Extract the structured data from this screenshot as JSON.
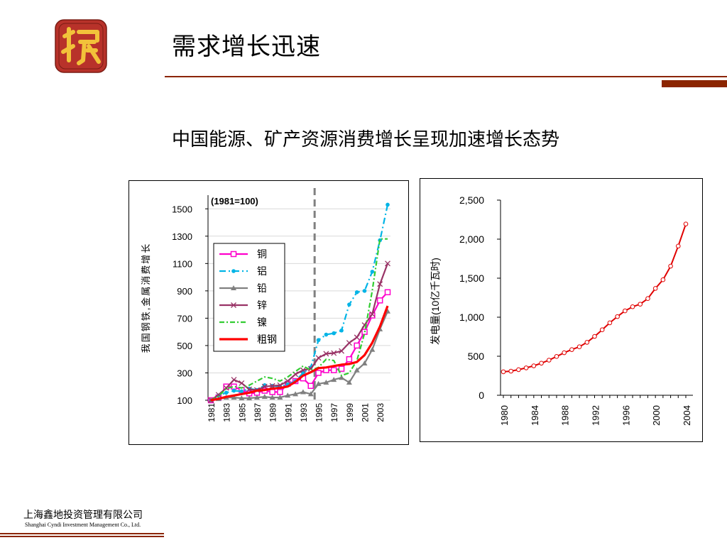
{
  "slide": {
    "title": "需求增长迅速",
    "subtitle": "中国能源、矿产资源消费增长呈现加速增长态势",
    "company_cn": "上海鑫地投资管理有限公司",
    "company_en": "Shanghai Cyndi Investment Management Co., Ltd.",
    "colors": {
      "accent": "#8B2500",
      "logo_bg": "#B8322A",
      "logo_mark": "#F2C23A"
    },
    "logo_icon": "seal-logo-icon"
  },
  "chart_data": [
    {
      "type": "line",
      "annotation": "(1981=100)",
      "ylabel": "我国钢铁,金属消费增长",
      "ylim": [
        100,
        1600
      ],
      "yticks": [
        100,
        300,
        500,
        700,
        900,
        1100,
        1300,
        1500
      ],
      "x": [
        1981,
        1982,
        1983,
        1984,
        1985,
        1986,
        1987,
        1988,
        1989,
        1990,
        1991,
        1992,
        1993,
        1994,
        1995,
        1996,
        1997,
        1998,
        1999,
        2000,
        2001,
        2002,
        2003,
        2004
      ],
      "xtick_labels": [
        "1981",
        "1983",
        "1985",
        "1987",
        "1989",
        "1991",
        "1993",
        "1995",
        "1997",
        "1999",
        "2001",
        "2003"
      ],
      "reference_line_x": 1994.5,
      "legend_position": "middle-left",
      "grid": true,
      "series": [
        {
          "name": "铜",
          "color": "#FF00CC",
          "marker": "square",
          "values": [
            100,
            120,
            200,
            200,
            175,
            150,
            155,
            170,
            160,
            160,
            220,
            240,
            260,
            205,
            300,
            320,
            320,
            330,
            400,
            500,
            600,
            720,
            830,
            890
          ]
        },
        {
          "name": "铝",
          "color": "#00B4E6",
          "marker": "circle",
          "values": [
            100,
            135,
            155,
            170,
            165,
            185,
            175,
            210,
            205,
            200,
            215,
            240,
            300,
            340,
            540,
            580,
            590,
            610,
            800,
            890,
            900,
            1040,
            1270,
            1530
          ]
        },
        {
          "name": "铅",
          "color": "#808080",
          "marker": "triangle",
          "values": [
            100,
            110,
            120,
            120,
            115,
            115,
            120,
            125,
            120,
            120,
            135,
            145,
            160,
            145,
            220,
            230,
            250,
            265,
            230,
            320,
            370,
            470,
            620,
            750
          ]
        },
        {
          "name": "锌",
          "color": "#993366",
          "marker": "x",
          "values": [
            100,
            140,
            190,
            250,
            225,
            180,
            175,
            200,
            205,
            210,
            240,
            290,
            320,
            330,
            410,
            440,
            445,
            460,
            520,
            560,
            650,
            730,
            950,
            1100
          ]
        },
        {
          "name": "镍",
          "color": "#33CC33",
          "marker": "none",
          "values": [
            100,
            130,
            185,
            200,
            190,
            210,
            240,
            270,
            260,
            240,
            270,
            310,
            350,
            320,
            340,
            400,
            390,
            280,
            300,
            390,
            590,
            900,
            1280,
            1280
          ]
        },
        {
          "name": "粗钢",
          "color": "#FF0000",
          "marker": "none",
          "values": [
            100,
            110,
            125,
            135,
            145,
            155,
            170,
            175,
            185,
            190,
            200,
            235,
            280,
            305,
            335,
            340,
            350,
            360,
            365,
            380,
            430,
            520,
            640,
            790
          ]
        }
      ]
    },
    {
      "type": "line",
      "ylabel": "发电量(10亿千瓦时)",
      "ylim": [
        0,
        2500
      ],
      "yticks": [
        0,
        500,
        1000,
        1500,
        2000,
        2500
      ],
      "ytick_labels": [
        "0",
        "500",
        "1,000",
        "1,500",
        "2,000",
        "2,500"
      ],
      "x": [
        1980,
        1981,
        1982,
        1983,
        1984,
        1985,
        1986,
        1987,
        1988,
        1989,
        1990,
        1991,
        1992,
        1993,
        1994,
        1995,
        1996,
        1997,
        1998,
        1999,
        2000,
        2001,
        2002,
        2003,
        2004
      ],
      "xtick_labels": [
        "1980",
        "1984",
        "1988",
        "1992",
        "1996",
        "2000",
        "2004"
      ],
      "xtick_values": [
        1980,
        1984,
        1988,
        1992,
        1996,
        2000,
        2004
      ],
      "grid": false,
      "series": [
        {
          "color": "#E00000",
          "marker": "circle-open",
          "values": [
            301,
            309,
            328,
            351,
            377,
            411,
            450,
            497,
            545,
            585,
            621,
            678,
            754,
            839,
            928,
            1008,
            1081,
            1134,
            1167,
            1239,
            1369,
            1480,
            1654,
            1911,
            2194
          ]
        }
      ]
    }
  ]
}
